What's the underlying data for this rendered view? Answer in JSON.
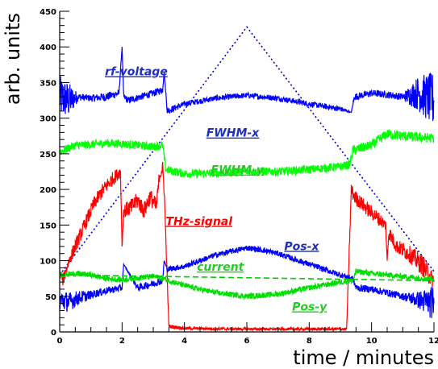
{
  "chart_data": {
    "type": "line",
    "title": "",
    "xlabel": "time / minutes",
    "ylabel": "arb. units",
    "xlim": [
      0,
      12
    ],
    "ylim": [
      0,
      450
    ],
    "x_ticks": [
      "0",
      "2",
      "4",
      "6",
      "8",
      "10",
      "12"
    ],
    "y_ticks": [
      "0",
      "50",
      "100",
      "150",
      "200",
      "250",
      "300",
      "350",
      "400",
      "450"
    ],
    "grid": false,
    "legend": "none",
    "annotations": [
      "rf-voltage",
      "FWHM-x",
      "FWHM-y",
      "THz-signal",
      "Pos-x",
      "current",
      "Pos-y"
    ],
    "series": [
      {
        "name": "rf-voltage",
        "color": "#0000cc",
        "style": "dotted",
        "x": [
          0,
          6,
          12
        ],
        "y": [
          80,
          428,
          85
        ]
      },
      {
        "name": "FWHM-x",
        "color": "#0000ff",
        "style": "solid",
        "x": [
          0,
          0.3,
          0.6,
          1.0,
          1.5,
          1.9,
          2.0,
          2.05,
          2.2,
          2.6,
          3.0,
          3.3,
          3.35,
          3.45,
          4.0,
          5.0,
          6.0,
          7.0,
          8.0,
          9.0,
          9.35,
          9.45,
          10.0,
          10.5,
          11.0,
          11.5,
          12.0
        ],
        "y": [
          330,
          325,
          330,
          328,
          330,
          335,
          400,
          330,
          325,
          330,
          335,
          340,
          365,
          310,
          320,
          328,
          332,
          328,
          320,
          313,
          308,
          330,
          335,
          333,
          330,
          335,
          325
        ],
        "noise": [
          30,
          25,
          5,
          5,
          6,
          5,
          0,
          5,
          5,
          5,
          5,
          5,
          0,
          5,
          4,
          4,
          4,
          4,
          4,
          4,
          0,
          5,
          5,
          5,
          5,
          25,
          40
        ]
      },
      {
        "name": "FWHM-y",
        "color": "#00ff00",
        "style": "solid",
        "x": [
          0,
          0.5,
          1.0,
          1.5,
          2.0,
          2.5,
          3.0,
          3.3,
          3.4,
          4.0,
          5.0,
          6.0,
          7.0,
          8.0,
          9.0,
          9.3,
          9.4,
          10.0,
          10.5,
          11.0,
          11.5,
          12.0
        ],
        "y": [
          253,
          262,
          263,
          265,
          264,
          262,
          260,
          262,
          228,
          222,
          223,
          225,
          225,
          228,
          232,
          235,
          255,
          262,
          278,
          275,
          273,
          272
        ],
        "noise": [
          6,
          6,
          6,
          6,
          6,
          6,
          6,
          6,
          6,
          6,
          6,
          6,
          6,
          6,
          6,
          6,
          7,
          7,
          7,
          7,
          7,
          7
        ]
      },
      {
        "name": "THz-signal",
        "color": "#ff0000",
        "style": "solid",
        "x": [
          0,
          0.1,
          0.3,
          0.5,
          0.8,
          1.1,
          1.4,
          1.7,
          1.95,
          2.0,
          2.05,
          2.3,
          2.5,
          2.7,
          2.9,
          3.1,
          3.2,
          3.3,
          3.35,
          3.5,
          4.0,
          6.0,
          8.0,
          9.2,
          9.35,
          9.45,
          9.8,
          10.2,
          10.45,
          10.5,
          10.55,
          10.8,
          11.2,
          11.6,
          12.0
        ],
        "y": [
          85,
          72,
          100,
          120,
          150,
          180,
          200,
          215,
          225,
          120,
          170,
          175,
          185,
          170,
          190,
          175,
          220,
          230,
          200,
          8,
          5,
          4,
          4,
          4,
          200,
          190,
          175,
          160,
          150,
          100,
          140,
          120,
          110,
          95,
          70
        ],
        "noise": [
          5,
          8,
          8,
          10,
          10,
          10,
          10,
          10,
          8,
          0,
          10,
          12,
          12,
          12,
          12,
          12,
          10,
          10,
          10,
          3,
          2,
          2,
          2,
          2,
          10,
          10,
          10,
          10,
          8,
          0,
          10,
          10,
          12,
          15,
          12
        ]
      },
      {
        "name": "Pos-x",
        "color": "#0000ff",
        "style": "solid",
        "x": [
          0,
          0.3,
          0.6,
          1.0,
          1.5,
          2.0,
          2.05,
          2.5,
          3.0,
          3.3,
          3.35,
          3.45,
          4.0,
          5.0,
          6.0,
          6.5,
          7.0,
          8.0,
          9.0,
          9.4,
          9.5,
          10.0,
          10.5,
          11.0,
          11.5,
          12.0
        ],
        "y": [
          45,
          42,
          48,
          52,
          58,
          62,
          95,
          62,
          68,
          72,
          100,
          88,
          92,
          108,
          118,
          115,
          110,
          95,
          80,
          75,
          62,
          60,
          55,
          50,
          45,
          40
        ],
        "noise": [
          15,
          14,
          10,
          6,
          5,
          5,
          0,
          5,
          5,
          5,
          0,
          4,
          4,
          4,
          4,
          4,
          4,
          4,
          4,
          4,
          5,
          5,
          5,
          5,
          12,
          25
        ]
      },
      {
        "name": "Pos-y",
        "color": "#00dd00",
        "style": "solid",
        "x": [
          0,
          0.5,
          1.0,
          1.5,
          2.0,
          2.5,
          3.0,
          3.35,
          3.5,
          4.0,
          5.0,
          6.0,
          7.0,
          8.0,
          9.0,
          9.4,
          9.5,
          10.0,
          10.5,
          11.0,
          11.5,
          12.0
        ],
        "y": [
          80,
          82,
          80,
          75,
          73,
          76,
          78,
          75,
          72,
          65,
          55,
          50,
          53,
          62,
          70,
          72,
          85,
          82,
          80,
          78,
          76,
          75
        ],
        "noise": [
          4,
          4,
          4,
          4,
          4,
          4,
          4,
          4,
          4,
          4,
          4,
          4,
          4,
          4,
          4,
          4,
          4,
          4,
          4,
          4,
          4,
          4
        ]
      },
      {
        "name": "current",
        "color": "#00cc00",
        "style": "dashed",
        "x": [
          0,
          12
        ],
        "y": [
          80,
          72
        ]
      }
    ]
  }
}
